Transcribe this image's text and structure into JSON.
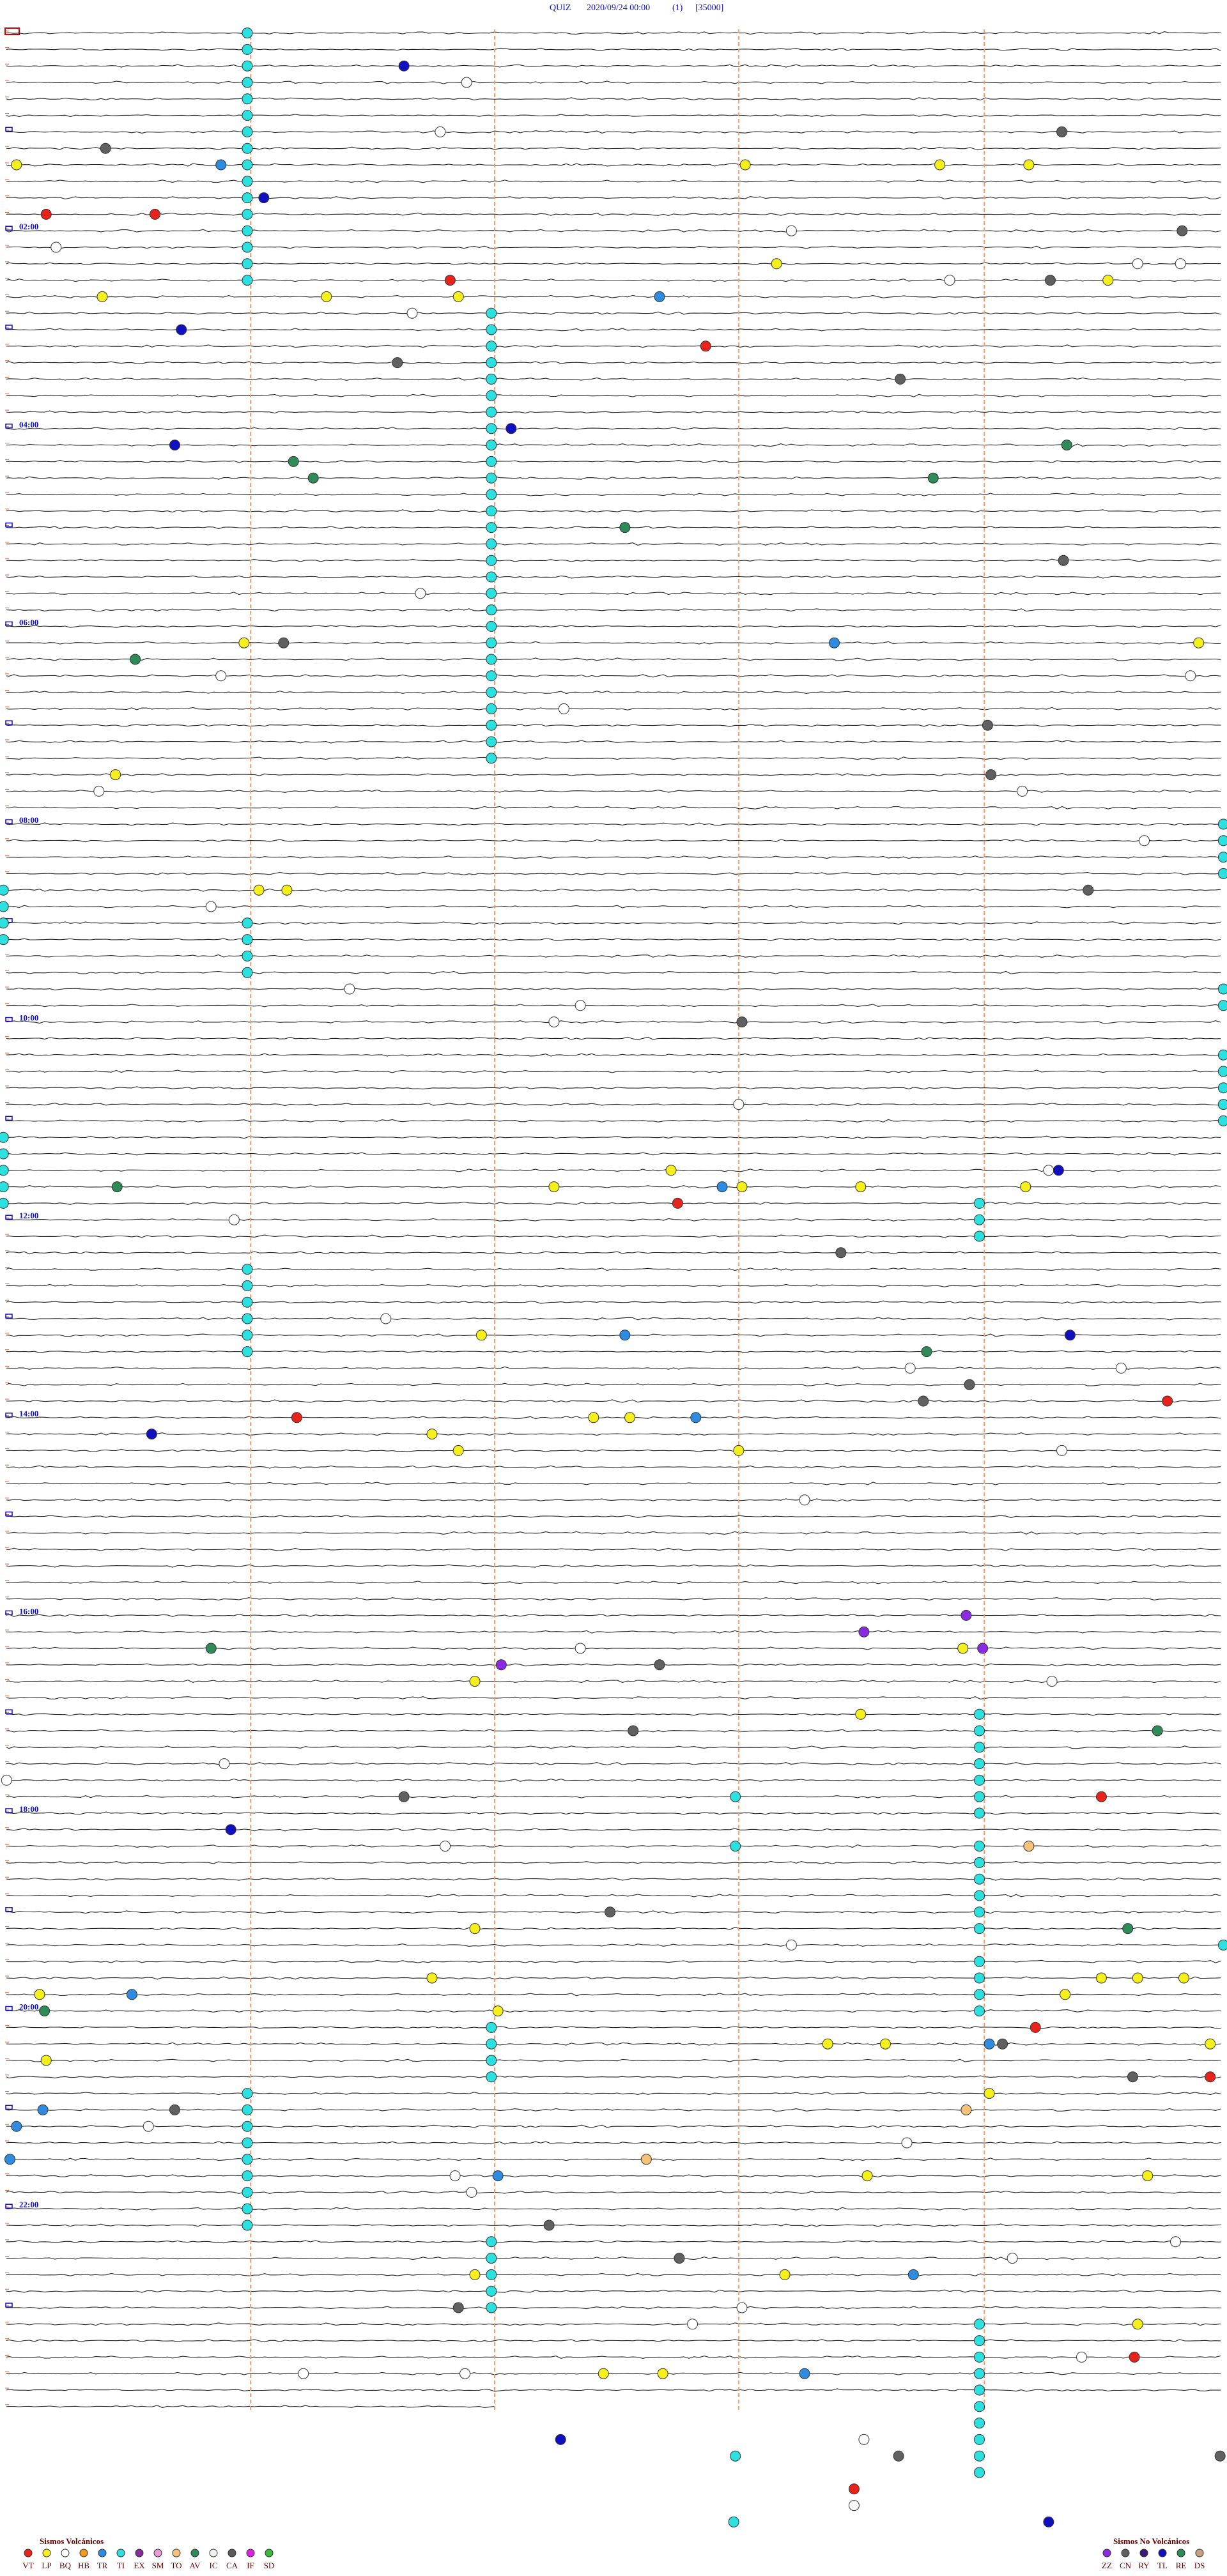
{
  "header": {
    "station": "QUIZ",
    "datetime": "2020/09/24 00:00",
    "channel": "(1)",
    "scale": "[35000]"
  },
  "time_labels": [
    "02:00",
    "04:00",
    "06:00",
    "08:00",
    "10:00",
    "12:00",
    "14:00",
    "16:00",
    "18:00",
    "20:00",
    "22:00"
  ],
  "legend_volcanic": {
    "title": "Sismos Volcánicos",
    "items": [
      {
        "code": "VT",
        "color": "#e8231c"
      },
      {
        "code": "LP",
        "color": "#f5f01c"
      },
      {
        "code": "BQ",
        "color": "#ffffff"
      },
      {
        "code": "HB",
        "color": "#f39a1c"
      },
      {
        "code": "TR",
        "color": "#2f8be0"
      },
      {
        "code": "TI",
        "color": "#2ce0e0"
      },
      {
        "code": "EX",
        "color": "#8a2b9a"
      },
      {
        "code": "SM",
        "color": "#e79ad8"
      },
      {
        "code": "TO",
        "color": "#f5c27a"
      },
      {
        "code": "AV",
        "color": "#2e8b57"
      },
      {
        "code": "IC",
        "color": "#f0f0f0"
      },
      {
        "code": "CA",
        "color": "#5a5a5a"
      },
      {
        "code": "IF",
        "color": "#e020e0"
      },
      {
        "code": "SD",
        "color": "#3cb83c"
      }
    ]
  },
  "legend_nonvolcanic": {
    "title": "Sismos No Volcánicos",
    "items": [
      {
        "code": "ZZ",
        "color": "#8a2be2"
      },
      {
        "code": "CN",
        "color": "#606060"
      },
      {
        "code": "RY",
        "color": "#3a1a7a"
      },
      {
        "code": "TL",
        "color": "#1010c0"
      },
      {
        "code": "RE",
        "color": "#2e8b57"
      },
      {
        "code": "DS",
        "color": "#c8a080"
      }
    ]
  }
}
